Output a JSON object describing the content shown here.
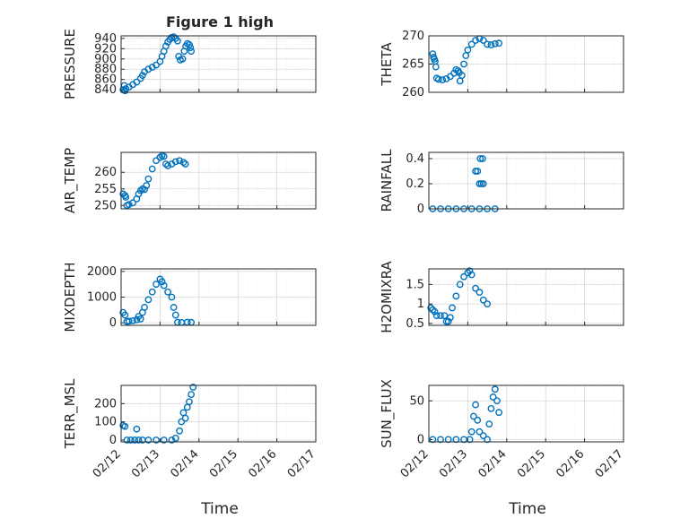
{
  "title": "Figure 1 high",
  "xlabel": "Time",
  "marker_color": "#0072BD",
  "x_tick_labels": [
    "02/12",
    "02/13",
    "02/14",
    "02/15",
    "02/16",
    "02/17"
  ],
  "chart_data": [
    {
      "type": "scatter",
      "ylabel": "PRESSURE",
      "ylim": [
        835,
        945
      ],
      "yticks": [
        840,
        860,
        880,
        900,
        920,
        940
      ],
      "points": [
        [
          0.05,
          840
        ],
        [
          0.08,
          848
        ],
        [
          0.1,
          838
        ],
        [
          0.12,
          842
        ],
        [
          0.2,
          845
        ],
        [
          0.3,
          850
        ],
        [
          0.4,
          855
        ],
        [
          0.5,
          862
        ],
        [
          0.55,
          868
        ],
        [
          0.6,
          875
        ],
        [
          0.7,
          880
        ],
        [
          0.8,
          884
        ],
        [
          0.9,
          888
        ],
        [
          1.0,
          895
        ],
        [
          1.05,
          905
        ],
        [
          1.1,
          915
        ],
        [
          1.15,
          925
        ],
        [
          1.2,
          933
        ],
        [
          1.25,
          938
        ],
        [
          1.3,
          942
        ],
        [
          1.35,
          943
        ],
        [
          1.4,
          940
        ],
        [
          1.45,
          935
        ],
        [
          1.48,
          905
        ],
        [
          1.52,
          898
        ],
        [
          1.58,
          900
        ],
        [
          1.62,
          915
        ],
        [
          1.66,
          925
        ],
        [
          1.7,
          930
        ],
        [
          1.75,
          928
        ],
        [
          1.78,
          922
        ],
        [
          1.8,
          915
        ]
      ]
    },
    {
      "type": "scatter",
      "ylabel": "THETA",
      "ylim": [
        260,
        270
      ],
      "yticks": [
        260,
        265,
        270
      ],
      "points": [
        [
          0.1,
          266.8
        ],
        [
          0.12,
          266.2
        ],
        [
          0.14,
          265.9
        ],
        [
          0.16,
          265.5
        ],
        [
          0.18,
          264.5
        ],
        [
          0.2,
          262.5
        ],
        [
          0.25,
          262.3
        ],
        [
          0.35,
          262.2
        ],
        [
          0.45,
          262.4
        ],
        [
          0.55,
          262.8
        ],
        [
          0.65,
          263.4
        ],
        [
          0.7,
          264.0
        ],
        [
          0.75,
          263.8
        ],
        [
          0.78,
          263.5
        ],
        [
          0.8,
          262.0
        ],
        [
          0.85,
          263.0
        ],
        [
          0.9,
          265.0
        ],
        [
          0.95,
          266.5
        ],
        [
          1.0,
          267.5
        ],
        [
          1.1,
          268.5
        ],
        [
          1.2,
          269.2
        ],
        [
          1.3,
          269.5
        ],
        [
          1.4,
          269.2
        ],
        [
          1.5,
          268.5
        ],
        [
          1.6,
          268.4
        ],
        [
          1.7,
          268.6
        ],
        [
          1.8,
          268.7
        ]
      ]
    },
    {
      "type": "scatter",
      "ylabel": "AIR_TEMP",
      "ylim": [
        249,
        266
      ],
      "yticks": [
        250,
        255,
        260
      ],
      "points": [
        [
          0.05,
          253.5
        ],
        [
          0.1,
          253.0
        ],
        [
          0.12,
          252.5
        ],
        [
          0.15,
          250.0
        ],
        [
          0.2,
          250.3
        ],
        [
          0.3,
          250.8
        ],
        [
          0.4,
          252.0
        ],
        [
          0.45,
          253.5
        ],
        [
          0.5,
          254.5
        ],
        [
          0.55,
          255.0
        ],
        [
          0.6,
          254.8
        ],
        [
          0.65,
          256.0
        ],
        [
          0.7,
          258.0
        ],
        [
          0.8,
          261.0
        ],
        [
          0.9,
          263.5
        ],
        [
          1.0,
          264.5
        ],
        [
          1.05,
          265.0
        ],
        [
          1.1,
          264.8
        ],
        [
          1.15,
          262.5
        ],
        [
          1.2,
          262.0
        ],
        [
          1.3,
          262.5
        ],
        [
          1.4,
          263.2
        ],
        [
          1.5,
          263.5
        ],
        [
          1.6,
          263.0
        ],
        [
          1.65,
          262.5
        ]
      ]
    },
    {
      "type": "scatter",
      "ylabel": "RAINFALL",
      "ylim": [
        0,
        0.45
      ],
      "yticks": [
        0,
        0.2,
        0.4
      ],
      "points": [
        [
          0.1,
          0
        ],
        [
          0.3,
          0
        ],
        [
          0.5,
          0
        ],
        [
          0.7,
          0
        ],
        [
          0.9,
          0
        ],
        [
          1.1,
          0
        ],
        [
          1.3,
          0
        ],
        [
          1.5,
          0
        ],
        [
          1.7,
          0
        ],
        [
          1.2,
          0.3
        ],
        [
          1.25,
          0.3
        ],
        [
          1.3,
          0.2
        ],
        [
          1.35,
          0.2
        ],
        [
          1.4,
          0.2
        ],
        [
          1.32,
          0.4
        ],
        [
          1.38,
          0.4
        ]
      ]
    },
    {
      "type": "scatter",
      "ylabel": "MIXDEPTH",
      "ylim": [
        -100,
        2100
      ],
      "yticks": [
        0,
        1000,
        2000
      ],
      "points": [
        [
          0.05,
          400
        ],
        [
          0.1,
          300
        ],
        [
          0.15,
          50
        ],
        [
          0.2,
          60
        ],
        [
          0.3,
          80
        ],
        [
          0.4,
          120
        ],
        [
          0.45,
          250
        ],
        [
          0.5,
          150
        ],
        [
          0.55,
          400
        ],
        [
          0.6,
          600
        ],
        [
          0.7,
          900
        ],
        [
          0.8,
          1200
        ],
        [
          0.9,
          1500
        ],
        [
          1.0,
          1700
        ],
        [
          1.05,
          1600
        ],
        [
          1.1,
          1450
        ],
        [
          1.2,
          1200
        ],
        [
          1.3,
          1000
        ],
        [
          1.35,
          600
        ],
        [
          1.4,
          300
        ],
        [
          1.45,
          20
        ],
        [
          1.55,
          10
        ],
        [
          1.7,
          20
        ],
        [
          1.8,
          15
        ]
      ]
    },
    {
      "type": "scatter",
      "ylabel": "H2OMIXRA",
      "ylim": [
        0.45,
        1.9
      ],
      "yticks": [
        0.5,
        1,
        1.5
      ],
      "points": [
        [
          0.05,
          0.9
        ],
        [
          0.1,
          0.85
        ],
        [
          0.15,
          0.8
        ],
        [
          0.2,
          0.7
        ],
        [
          0.3,
          0.7
        ],
        [
          0.4,
          0.7
        ],
        [
          0.45,
          0.55
        ],
        [
          0.5,
          0.55
        ],
        [
          0.55,
          0.65
        ],
        [
          0.6,
          0.9
        ],
        [
          0.7,
          1.2
        ],
        [
          0.8,
          1.5
        ],
        [
          0.9,
          1.7
        ],
        [
          1.0,
          1.8
        ],
        [
          1.05,
          1.85
        ],
        [
          1.1,
          1.75
        ],
        [
          1.2,
          1.4
        ],
        [
          1.3,
          1.3
        ],
        [
          1.4,
          1.1
        ],
        [
          1.5,
          1.0
        ]
      ]
    },
    {
      "type": "scatter",
      "ylabel": "TERR_MSL",
      "ylim": [
        -10,
        300
      ],
      "yticks": [
        0,
        100,
        200
      ],
      "points": [
        [
          0.05,
          80
        ],
        [
          0.1,
          75
        ],
        [
          0.15,
          0
        ],
        [
          0.25,
          0
        ],
        [
          0.35,
          0
        ],
        [
          0.4,
          60
        ],
        [
          0.45,
          0
        ],
        [
          0.55,
          0
        ],
        [
          0.7,
          0
        ],
        [
          0.9,
          0
        ],
        [
          1.1,
          0
        ],
        [
          1.3,
          0
        ],
        [
          1.4,
          10
        ],
        [
          1.5,
          50
        ],
        [
          1.55,
          100
        ],
        [
          1.6,
          150
        ],
        [
          1.65,
          120
        ],
        [
          1.7,
          180
        ],
        [
          1.75,
          210
        ],
        [
          1.8,
          250
        ],
        [
          1.85,
          290
        ]
      ]
    },
    {
      "type": "scatter",
      "ylabel": "SUN_FLUX",
      "ylim": [
        -3,
        70
      ],
      "yticks": [
        0,
        50
      ],
      "points": [
        [
          0.1,
          0
        ],
        [
          0.3,
          0
        ],
        [
          0.5,
          0
        ],
        [
          0.7,
          0
        ],
        [
          0.9,
          0
        ],
        [
          1.05,
          0
        ],
        [
          1.1,
          10
        ],
        [
          1.15,
          30
        ],
        [
          1.2,
          45
        ],
        [
          1.25,
          25
        ],
        [
          1.3,
          10
        ],
        [
          1.4,
          5
        ],
        [
          1.5,
          0
        ],
        [
          1.55,
          20
        ],
        [
          1.6,
          40
        ],
        [
          1.65,
          55
        ],
        [
          1.7,
          65
        ],
        [
          1.75,
          50
        ],
        [
          1.8,
          35
        ]
      ]
    }
  ]
}
